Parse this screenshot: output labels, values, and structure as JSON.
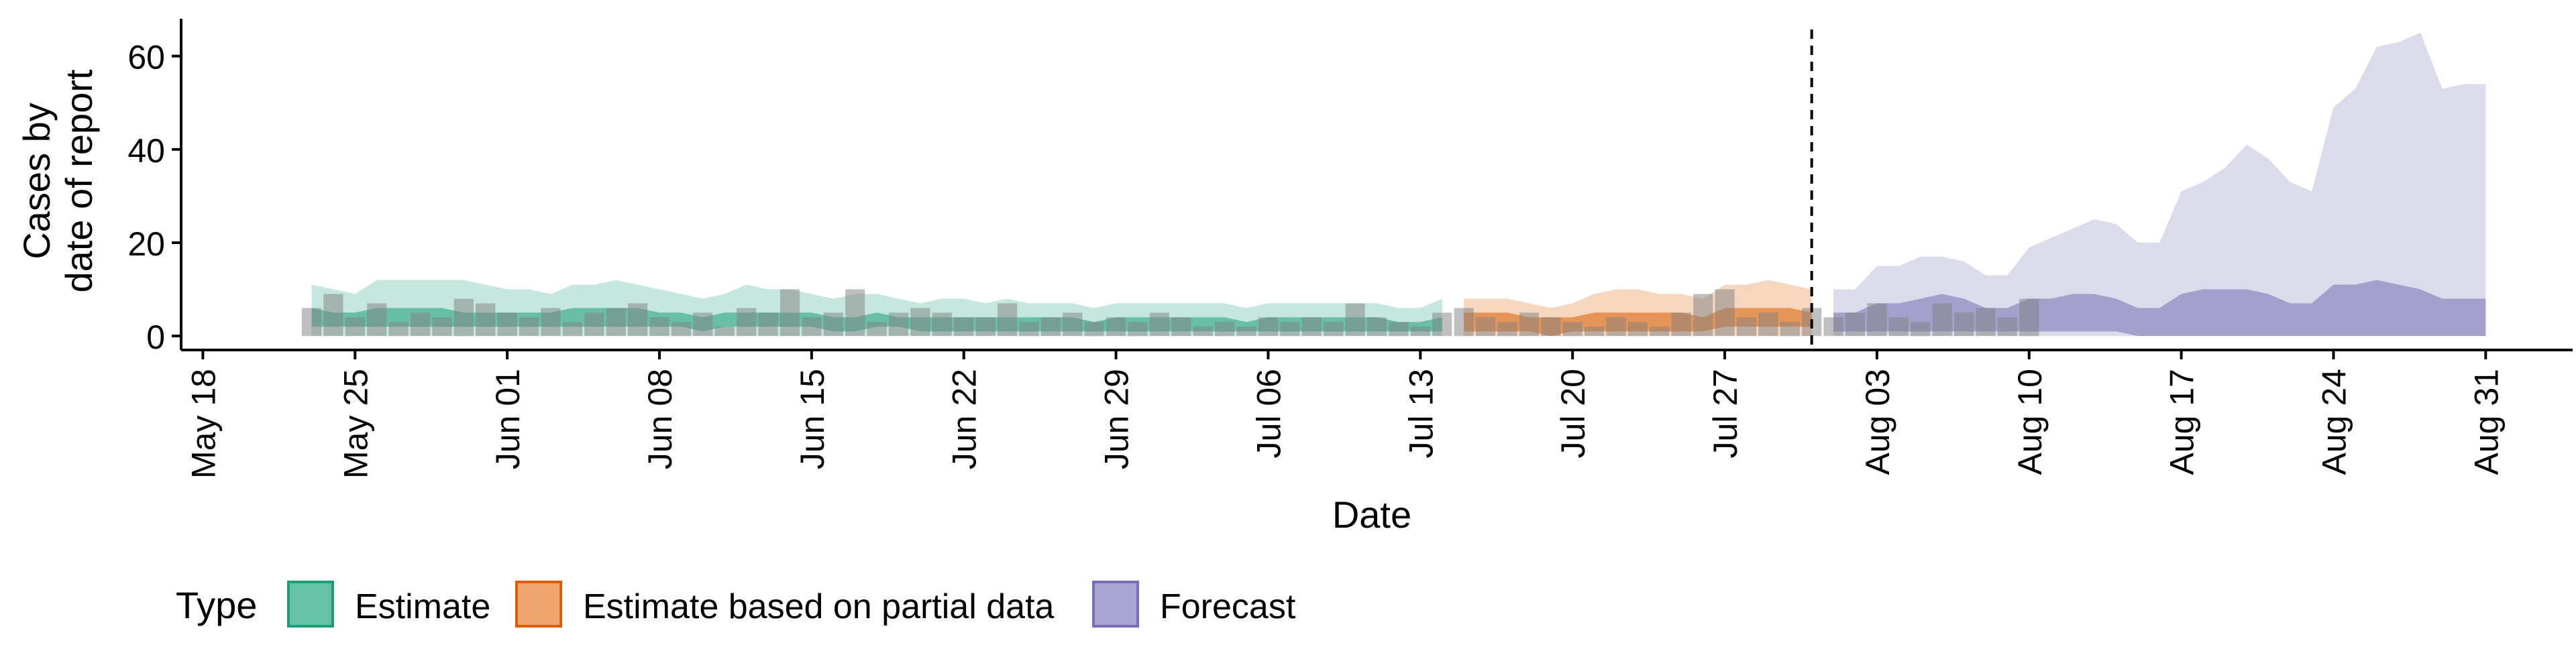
{
  "chart_data": {
    "type": "area",
    "xlabel": "Date",
    "ylabel_lines": [
      "Cases by",
      "date of report"
    ],
    "x_ticks": [
      "May 18",
      "May 25",
      "Jun 01",
      "Jun 08",
      "Jun 15",
      "Jun 22",
      "Jun 29",
      "Jul 06",
      "Jul 13",
      "Jul 20",
      "Jul 27",
      "Aug 03",
      "Aug 10",
      "Aug 17",
      "Aug 24",
      "Aug 31"
    ],
    "x_tick_dates": [
      "2020-05-18",
      "2020-05-25",
      "2020-06-01",
      "2020-06-08",
      "2020-06-15",
      "2020-06-22",
      "2020-06-29",
      "2020-07-06",
      "2020-07-13",
      "2020-07-20",
      "2020-07-27",
      "2020-08-03",
      "2020-08-10",
      "2020-08-17",
      "2020-08-24",
      "2020-08-31"
    ],
    "xlim": [
      "2020-05-17",
      "2020-09-04"
    ],
    "y_ticks": [
      0,
      20,
      40,
      60
    ],
    "ylim": [
      -3,
      68
    ],
    "forecast_date": "2020-07-31",
    "legend": {
      "title": "Type",
      "position": "bottom",
      "items": [
        {
          "label": "Estimate",
          "fill": "#66C2A5",
          "stroke": "#1B9E77"
        },
        {
          "label": "Estimate based on partial data",
          "fill": "#F0A56E",
          "stroke": "#D95F02"
        },
        {
          "label": "Forecast",
          "fill": "#A9A6D3",
          "stroke": "#7570B3"
        }
      ]
    },
    "colors": {
      "estimate": "#1B9E77",
      "partial": "#D95F02",
      "forecast": "#7570B3",
      "bars": "#808080"
    },
    "series": [
      {
        "key": "estimate",
        "start": "2020-05-23",
        "lower90": [
          0,
          0,
          0,
          0,
          0,
          0,
          0,
          0,
          0,
          0,
          0,
          0,
          0,
          0,
          0,
          0,
          0,
          0,
          0,
          0,
          0,
          0,
          0,
          0,
          0,
          0,
          0,
          0,
          0,
          0,
          0,
          0,
          0,
          0,
          0,
          0,
          0,
          0,
          0,
          0,
          0,
          0,
          0,
          0,
          0,
          0,
          0,
          0,
          0,
          0,
          0,
          0,
          0
        ],
        "upper90": [
          11,
          10,
          9,
          12,
          12,
          12,
          12,
          12,
          11,
          10,
          10,
          9,
          11,
          11,
          12,
          11,
          10,
          9,
          8,
          9,
          11,
          10,
          10,
          9,
          8,
          9,
          9,
          8,
          7,
          8,
          8,
          7,
          8,
          7,
          7,
          7,
          6,
          7,
          7,
          7,
          7,
          7,
          7,
          6,
          7,
          7,
          7,
          7,
          7,
          7,
          6,
          6,
          8
        ],
        "lower50": [
          2,
          2,
          2,
          2,
          2,
          2,
          2,
          2,
          2,
          2,
          2,
          2,
          2,
          2,
          2,
          2,
          2,
          2,
          1,
          2,
          2,
          2,
          2,
          2,
          1,
          1,
          2,
          2,
          1,
          1,
          1,
          1,
          1,
          1,
          1,
          1,
          1,
          1,
          1,
          1,
          1,
          1,
          1,
          1,
          1,
          1,
          1,
          1,
          1,
          1,
          1,
          1,
          1
        ],
        "upper50": [
          6,
          5,
          5,
          6,
          6,
          6,
          6,
          5,
          5,
          5,
          5,
          5,
          6,
          6,
          6,
          6,
          5,
          5,
          4,
          5,
          5,
          5,
          5,
          5,
          4,
          4,
          5,
          4,
          4,
          4,
          4,
          4,
          4,
          4,
          4,
          4,
          3,
          4,
          4,
          4,
          4,
          4,
          4,
          3,
          4,
          4,
          4,
          4,
          4,
          4,
          3,
          3,
          4
        ]
      },
      {
        "key": "partial",
        "start": "2020-07-15",
        "lower90": [
          0,
          0,
          0,
          0,
          0,
          0,
          0,
          0,
          0,
          0,
          0,
          0,
          0,
          0,
          0,
          0,
          0
        ],
        "upper90": [
          8,
          8,
          8,
          7,
          6,
          7,
          9,
          10,
          10,
          9,
          9,
          8,
          11,
          11,
          12,
          11,
          10
        ],
        "lower50": [
          1,
          1,
          1,
          1,
          0,
          1,
          1,
          1,
          1,
          1,
          1,
          1,
          2,
          2,
          2,
          2,
          2
        ],
        "upper50": [
          5,
          5,
          5,
          4,
          4,
          4,
          5,
          5,
          5,
          5,
          5,
          4,
          6,
          6,
          6,
          6,
          5
        ]
      },
      {
        "key": "forecast",
        "start": "2020-08-01",
        "lower90": [
          0,
          0,
          0,
          0,
          0,
          0,
          0,
          0,
          0,
          0,
          0,
          0,
          0,
          0,
          0,
          0,
          0,
          0,
          0,
          0,
          0,
          0,
          0,
          0,
          0,
          0,
          0,
          0,
          0,
          0,
          0
        ],
        "upper90": [
          10,
          10,
          15,
          15,
          17,
          17,
          16,
          13,
          13,
          19,
          21,
          23,
          25,
          24,
          20,
          20,
          31,
          33,
          36,
          41,
          38,
          33,
          31,
          49,
          53,
          62,
          63,
          65,
          53,
          54,
          54
        ],
        "lower50": [
          1,
          1,
          1,
          1,
          1,
          1,
          1,
          1,
          1,
          1,
          1,
          1,
          1,
          1,
          0,
          0,
          0,
          0,
          0,
          0,
          0,
          0,
          0,
          0,
          0,
          0,
          0,
          0,
          0,
          0,
          0
        ],
        "upper50": [
          5,
          5,
          7,
          7,
          8,
          9,
          8,
          6,
          6,
          8,
          8,
          9,
          9,
          8,
          6,
          6,
          9,
          10,
          10,
          10,
          9,
          7,
          7,
          11,
          11,
          12,
          11,
          10,
          8,
          8,
          8
        ]
      }
    ],
    "reported_cases": {
      "start": "2020-05-23",
      "values": [
        6,
        9,
        4,
        7,
        3,
        5,
        4,
        8,
        7,
        5,
        4,
        6,
        3,
        5,
        6,
        7,
        4,
        3,
        5,
        2,
        6,
        5,
        10,
        4,
        5,
        10,
        3,
        5,
        6,
        5,
        4,
        4,
        7,
        3,
        4,
        5,
        3,
        4,
        3,
        5,
        4,
        2,
        3,
        2,
        4,
        3,
        4,
        3,
        7,
        4,
        3,
        2,
        5,
        6,
        4,
        3,
        5,
        4,
        3,
        2,
        4,
        3,
        2,
        5,
        9,
        10,
        4,
        5,
        3,
        6,
        4,
        5,
        7,
        4,
        3,
        7,
        5,
        6,
        4,
        8
      ]
    }
  }
}
